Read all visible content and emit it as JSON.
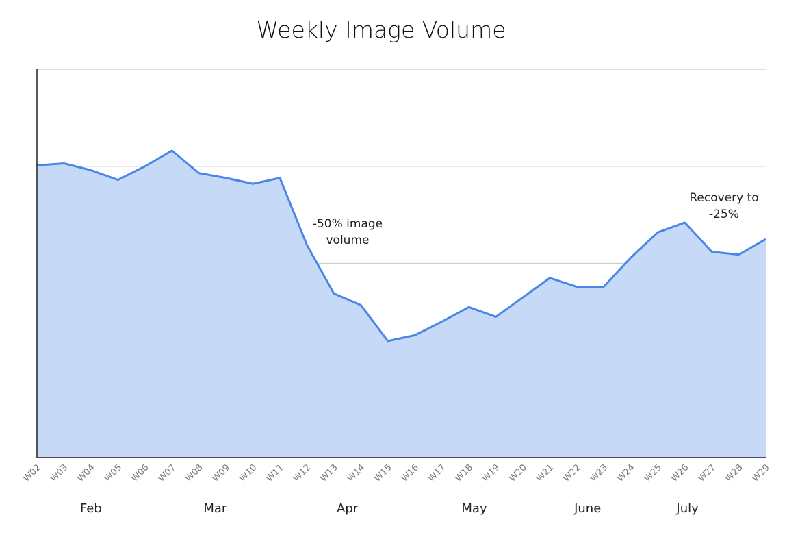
{
  "chart_data": {
    "type": "area",
    "title": "Weekly Image Volume",
    "xlabel": "",
    "ylabel": "",
    "categories": [
      "W02",
      "W03",
      "W04",
      "W05",
      "W06",
      "W07",
      "W08",
      "W09",
      "W10",
      "W11",
      "W12",
      "W13",
      "W14",
      "W15",
      "W16",
      "W17",
      "W18",
      "W19",
      "W20",
      "W21",
      "W22",
      "W23",
      "W24",
      "W25",
      "W26",
      "W27",
      "W28",
      "W29"
    ],
    "values": [
      3.01,
      3.03,
      2.96,
      2.86,
      3.0,
      3.16,
      2.93,
      2.88,
      2.82,
      2.88,
      2.19,
      1.69,
      1.57,
      1.2,
      1.26,
      1.4,
      1.55,
      1.45,
      1.65,
      1.85,
      1.76,
      1.76,
      2.06,
      2.32,
      2.42,
      2.12,
      2.09,
      2.25
    ],
    "ylim": [
      0,
      4
    ],
    "y_tick_labels_shown": false,
    "grid": "horizontal",
    "months": [
      "Feb",
      "Mar",
      "Apr",
      "May",
      "June",
      "July"
    ],
    "annotations": [
      {
        "lines": [
          "-50% image",
          "volume"
        ],
        "near": "W13"
      },
      {
        "lines": [
          "Recovery to",
          "-25%"
        ],
        "near": "W28"
      }
    ],
    "colors": {
      "line": "#4a86e8",
      "fill": "#c6daf8",
      "grid": "#cccccc",
      "axis": "#222222",
      "text": "#222222",
      "tick": "#777777"
    }
  }
}
